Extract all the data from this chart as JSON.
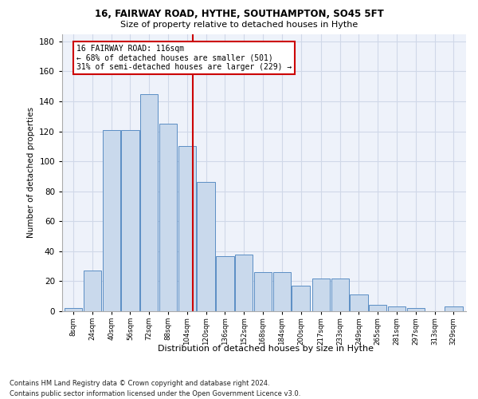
{
  "title1": "16, FAIRWAY ROAD, HYTHE, SOUTHAMPTON, SO45 5FT",
  "title2": "Size of property relative to detached houses in Hythe",
  "xlabel": "Distribution of detached houses by size in Hythe",
  "ylabel": "Number of detached properties",
  "footer1": "Contains HM Land Registry data © Crown copyright and database right 2024.",
  "footer2": "Contains public sector information licensed under the Open Government Licence v3.0.",
  "annotation_line1": "16 FAIRWAY ROAD: 116sqm",
  "annotation_line2": "← 68% of detached houses are smaller (501)",
  "annotation_line3": "31% of semi-detached houses are larger (229) →",
  "property_size": 116,
  "bins": [
    8,
    24,
    40,
    56,
    72,
    88,
    104,
    120,
    136,
    152,
    168,
    184,
    200,
    217,
    233,
    249,
    265,
    281,
    297,
    313,
    329
  ],
  "values": [
    2,
    27,
    121,
    121,
    145,
    125,
    110,
    86,
    37,
    38,
    26,
    26,
    17,
    22,
    22,
    11,
    4,
    3,
    2,
    0,
    3
  ],
  "bar_face_color": "#c9d9ec",
  "bar_edge_color": "#5b8ec4",
  "vline_color": "#cc0000",
  "annotation_box_color": "#cc0000",
  "grid_color": "#d0d8e8",
  "bg_color": "#eef2fa",
  "ylim": [
    0,
    185
  ],
  "yticks": [
    0,
    20,
    40,
    60,
    80,
    100,
    120,
    140,
    160,
    180
  ],
  "bar_spacing": 16
}
